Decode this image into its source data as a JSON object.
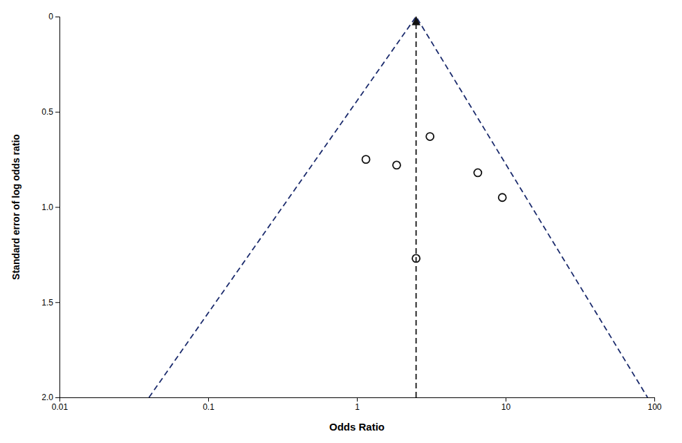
{
  "chart_data": {
    "type": "scatter",
    "xlabel": "Odds Ratio",
    "ylabel": "Standard error of log odds ratio",
    "log": "x",
    "xlim": [
      0.01,
      100
    ],
    "ylim": [
      2,
      0
    ],
    "xticks": [
      0.01,
      0.1,
      1,
      10,
      100
    ],
    "yticks": [
      0,
      0.5,
      {
        "value": 1,
        "label": "1.0"
      },
      1.5,
      {
        "value": 2,
        "label": "2.0"
      }
    ],
    "grid": false,
    "series": [
      {
        "type": "line",
        "line_style": "dashed",
        "color": "#1a2a6c",
        "x": [
          0.04,
          2.5,
          90.0
        ],
        "values": [
          2.0,
          0.0,
          2.0
        ]
      },
      {
        "type": "line",
        "line_style": "dashed",
        "marker": "arrow",
        "color": "#111111",
        "x": [
          2.5,
          2.5
        ],
        "values": [
          2,
          0
        ]
      },
      {
        "type": "scatter",
        "marker": "circle-open",
        "color": "#111111",
        "x": [
          1.15,
          1.85,
          3.1,
          2.5,
          6.5,
          9.5
        ],
        "values": [
          0.75,
          0.78,
          0.63,
          1.27,
          0.82,
          0.95
        ]
      }
    ]
  }
}
